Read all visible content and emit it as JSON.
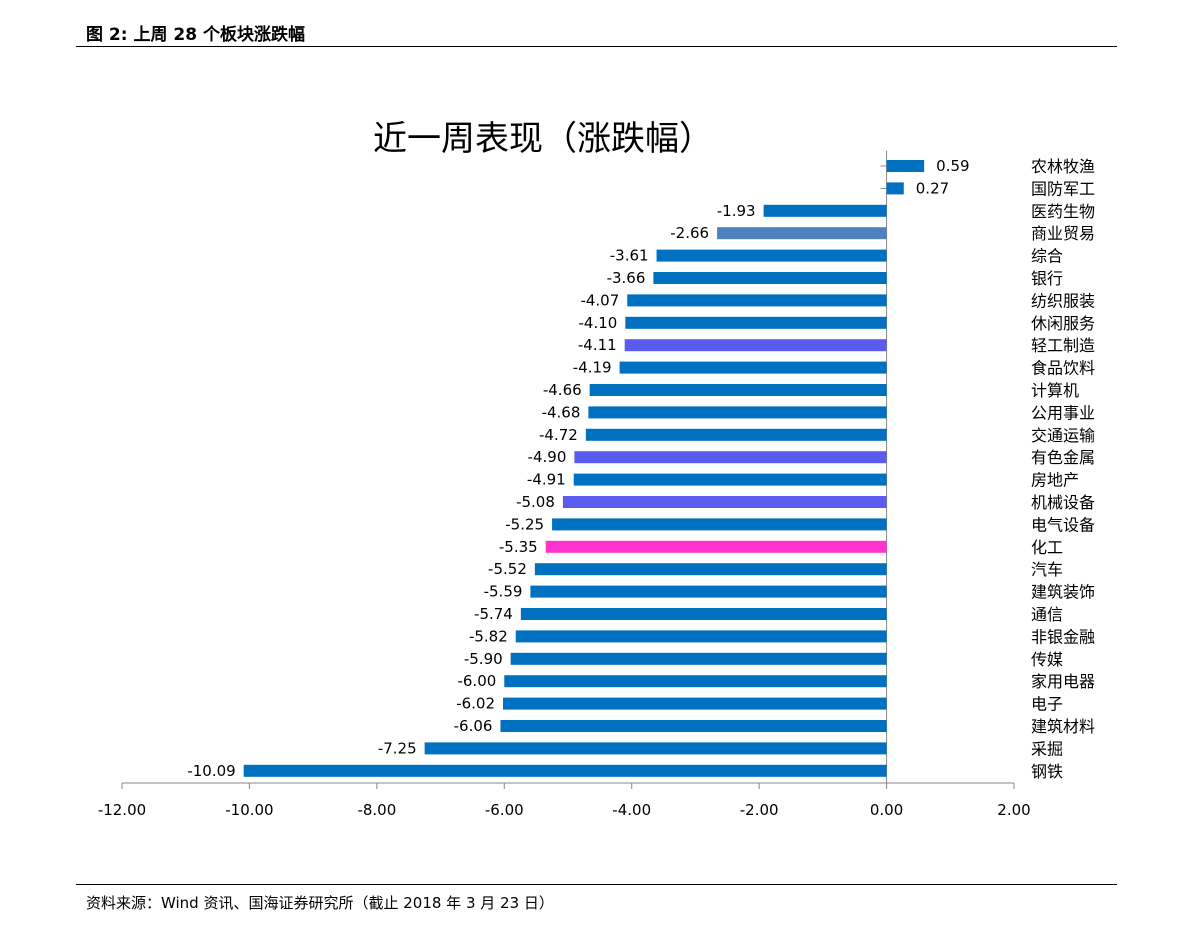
{
  "header": {
    "caption": "图 2:  上周 28 个板块涨跌幅"
  },
  "footer": {
    "source": "资料来源：Wind 资讯、国海证券研究所（截止 2018 年 3 月 23 日）"
  },
  "colors": {
    "default": "#0070C0",
    "steel": "#4F81BD",
    "violet": "#5B5BF0",
    "magenta": "#FF33CC"
  },
  "chart_data": {
    "type": "bar",
    "orientation": "horizontal",
    "title": "近一周表现（涨跌幅）",
    "xlim": [
      -12,
      2
    ],
    "xticks": [
      -12,
      -10,
      -8,
      -6,
      -4,
      -2,
      0,
      2
    ],
    "xtick_labels": [
      "-12.00",
      "-10.00",
      "-8.00",
      "-6.00",
      "-4.00",
      "-2.00",
      "0.00",
      "2.00"
    ],
    "grid": false,
    "categories": [
      "农林牧渔",
      "国防军工",
      "医药生物",
      "商业贸易",
      "综合",
      "银行",
      "纺织服装",
      "休闲服务",
      "轻工制造",
      "食品饮料",
      "计算机",
      "公用事业",
      "交通运输",
      "有色金属",
      "房地产",
      "机械设备",
      "电气设备",
      "化工",
      "汽车",
      "建筑装饰",
      "通信",
      "非银金融",
      "传媒",
      "家用电器",
      "电子",
      "建筑材料",
      "采掘",
      "钢铁"
    ],
    "values": [
      0.59,
      0.27,
      -1.93,
      -2.66,
      -3.61,
      -3.66,
      -4.07,
      -4.1,
      -4.11,
      -4.19,
      -4.66,
      -4.68,
      -4.72,
      -4.9,
      -4.91,
      -5.08,
      -5.25,
      -5.35,
      -5.52,
      -5.59,
      -5.74,
      -5.82,
      -5.9,
      -6.0,
      -6.02,
      -6.06,
      -7.25,
      -10.09
    ],
    "value_labels": [
      "0.59",
      "0.27",
      "-1.93",
      "-2.66",
      "-3.61",
      "-3.66",
      "-4.07",
      "-4.10",
      "-4.11",
      "-4.19",
      "-4.66",
      "-4.68",
      "-4.72",
      "-4.90",
      "-4.91",
      "-5.08",
      "-5.25",
      "-5.35",
      "-5.52",
      "-5.59",
      "-5.74",
      "-5.82",
      "-5.90",
      "-6.00",
      "-6.02",
      "-6.06",
      "-7.25",
      "-10.09"
    ],
    "bar_colors": [
      "#0070C0",
      "#0070C0",
      "#0070C0",
      "#4F81BD",
      "#0070C0",
      "#0070C0",
      "#0070C0",
      "#0070C0",
      "#5B5BF0",
      "#0070C0",
      "#0070C0",
      "#0070C0",
      "#0070C0",
      "#5B5BF0",
      "#0070C0",
      "#5B5BF0",
      "#0070C0",
      "#FF33CC",
      "#0070C0",
      "#0070C0",
      "#0070C0",
      "#0070C0",
      "#0070C0",
      "#0070C0",
      "#0070C0",
      "#0070C0",
      "#0070C0",
      "#0070C0"
    ]
  }
}
